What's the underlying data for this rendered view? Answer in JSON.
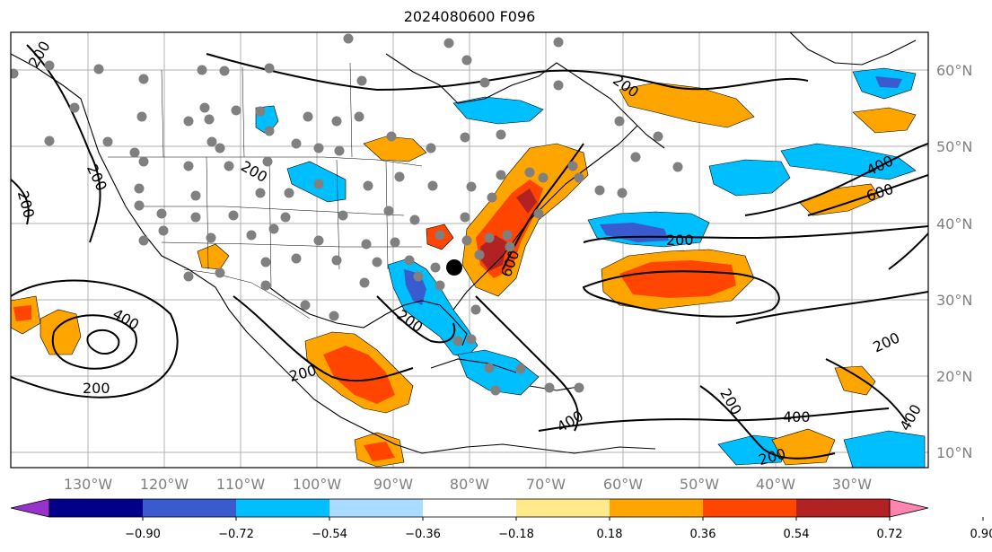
{
  "title": "2024080600 F096",
  "longitude_labels": [
    "130°W",
    "120°W",
    "110°W",
    "100°W",
    "90°W",
    "80°W",
    "70°W",
    "60°W",
    "50°W",
    "40°W",
    "30°W"
  ],
  "latitude_labels": [
    "60°N",
    "50°N",
    "40°N",
    "30°N",
    "20°N",
    "10°N"
  ],
  "colorbar": {
    "tick_labels": [
      "−0.90",
      "−0.72",
      "−0.54",
      "−0.36",
      "−0.18",
      "0.18",
      "0.36",
      "0.54",
      "0.72",
      "0.90"
    ],
    "colors": [
      "#9932cc",
      "#00008b",
      "#3a5bd0",
      "#00bfff",
      "#aadcff",
      "#ffffff",
      "#ffe98a",
      "#ffa500",
      "#ff4500",
      "#b22222",
      "#ff85b0"
    ]
  },
  "contour_labels": [
    "200",
    "200",
    "200",
    "200",
    "200",
    "200",
    "200",
    "200",
    "200",
    "200",
    "400",
    "400",
    "400",
    "400",
    "400",
    "600",
    "600",
    "200",
    "200"
  ],
  "map_features": {
    "shading_colors": {
      "dark_blue": "#3a5bd0",
      "blue": "#00bfff",
      "light_blue": "#aadcff",
      "yellow": "#ffe98a",
      "orange": "#ffa500",
      "red": "#ff4500",
      "dark_red": "#b22222"
    },
    "station_marker_color": "#808080",
    "highlight_marker_color": "#000000"
  }
}
